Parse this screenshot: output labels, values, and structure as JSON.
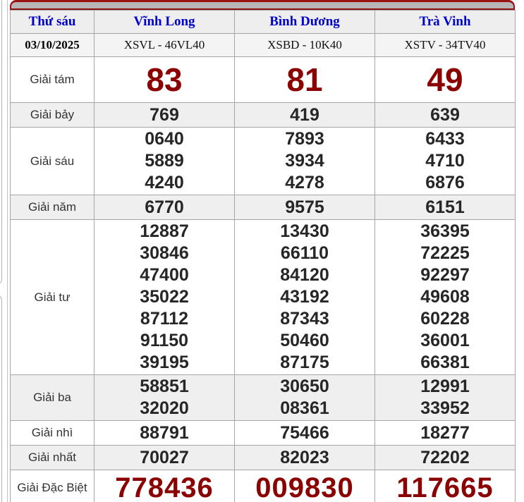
{
  "table": {
    "header": {
      "day": "Thứ sáu",
      "provinces": [
        "Vĩnh Long",
        "Bình Dương",
        "Trà Vinh"
      ]
    },
    "subheader": {
      "date": "03/10/2025",
      "codes": [
        "XSVL - 46VL40",
        "XSBD - 10K40",
        "XSTV - 34TV40"
      ]
    },
    "rows": [
      {
        "label": "Giải tám",
        "style": "eight",
        "shaded": false,
        "values": [
          [
            "83"
          ],
          [
            "81"
          ],
          [
            "49"
          ]
        ]
      },
      {
        "label": "Giải bảy",
        "style": "",
        "shaded": true,
        "values": [
          [
            "769"
          ],
          [
            "419"
          ],
          [
            "639"
          ]
        ]
      },
      {
        "label": "Giải sáu",
        "style": "",
        "shaded": false,
        "values": [
          [
            "0640",
            "5889",
            "4240"
          ],
          [
            "7893",
            "3934",
            "4278"
          ],
          [
            "6433",
            "4710",
            "6876"
          ]
        ]
      },
      {
        "label": "Giải năm",
        "style": "",
        "shaded": true,
        "values": [
          [
            "6770"
          ],
          [
            "9575"
          ],
          [
            "6151"
          ]
        ]
      },
      {
        "label": "Giải tư",
        "style": "",
        "shaded": false,
        "values": [
          [
            "12887",
            "30846",
            "47400",
            "35022",
            "87112",
            "91150",
            "39195"
          ],
          [
            "13430",
            "66110",
            "84120",
            "43192",
            "87343",
            "50460",
            "87175"
          ],
          [
            "36395",
            "72225",
            "92297",
            "49608",
            "60228",
            "36001",
            "66381"
          ]
        ]
      },
      {
        "label": "Giải ba",
        "style": "",
        "shaded": true,
        "values": [
          [
            "58851",
            "32020"
          ],
          [
            "30650",
            "08361"
          ],
          [
            "12991",
            "33952"
          ]
        ]
      },
      {
        "label": "Giải nhì",
        "style": "",
        "shaded": false,
        "values": [
          [
            "88791"
          ],
          [
            "75466"
          ],
          [
            "18277"
          ]
        ]
      },
      {
        "label": "Giải nhất",
        "style": "",
        "shaded": true,
        "values": [
          [
            "70027"
          ],
          [
            "82023"
          ],
          [
            "72202"
          ]
        ]
      },
      {
        "label": "Giải Đặc Biệt",
        "style": "special",
        "shaded": false,
        "values": [
          [
            "778436"
          ],
          [
            "009830"
          ],
          [
            "117665"
          ]
        ]
      }
    ]
  },
  "colors": {
    "accent_red": "#8b0000",
    "header_blue": "#0000cc",
    "bar_red": "#9b1212",
    "bar_gray": "#b6b6b6",
    "shaded_row": "#efefef",
    "grid_border": "#a6a6a6",
    "number_dark": "#262626",
    "footer_strip": "#f7ece6"
  }
}
